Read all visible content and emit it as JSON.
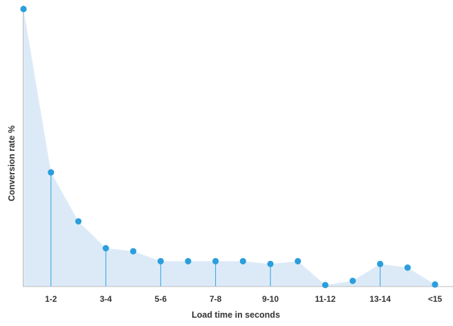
{
  "chart_data": {
    "type": "area",
    "title": "",
    "xlabel": "Load time in seconds",
    "ylabel": "Conversion rate %",
    "x_tick_labels": [
      "1-2",
      "3-4",
      "5-6",
      "7-8",
      "9-10",
      "11-12",
      "13-14",
      "<15"
    ],
    "ylim": [
      0,
      100
    ],
    "grid": false,
    "legend": "none",
    "series": [
      {
        "values": [
          100,
          41,
          23.3,
          13.6,
          12.5,
          8.9,
          8.9,
          8.9,
          8.9,
          7.9,
          8.9,
          0.3,
          1.8,
          7.9,
          6.6,
          0.5
        ]
      }
    ],
    "drop_lines_at_points": [
      1,
      3,
      5,
      7,
      9,
      13
    ],
    "colors": {
      "marker": "#2b9fdc",
      "area_fill": "#dceaf8",
      "drop_line": "#2b9fdc",
      "axis": "#bdbdbd",
      "text": "#333333"
    }
  }
}
